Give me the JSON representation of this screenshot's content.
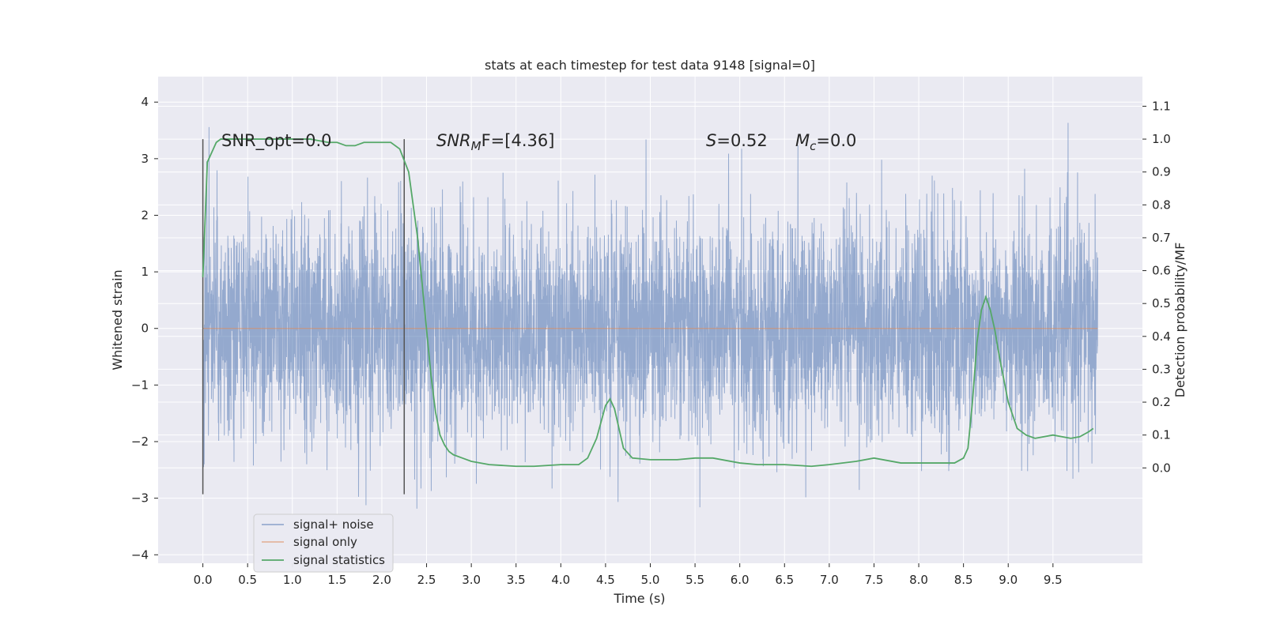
{
  "chart_data": {
    "type": "line",
    "title": "stats at each timestep for test data 9148 [signal=0]",
    "xlabel": "Time (s)",
    "ylabel": "Whitened strain",
    "ylabel_right": "Detection probability/MF",
    "xlim": [
      -0.5,
      10.5
    ],
    "ylim": [
      -4.15,
      4.45
    ],
    "ylim_right": [
      -0.29,
      1.19
    ],
    "x_ticks": [
      "0.0",
      "0.5",
      "1.0",
      "1.5",
      "2.0",
      "2.5",
      "3.0",
      "3.5",
      "4.0",
      "4.5",
      "5.0",
      "5.5",
      "6.0",
      "6.5",
      "7.0",
      "7.5",
      "8.0",
      "8.5",
      "9.0",
      "9.5"
    ],
    "y_ticks": [
      "−4",
      "−3",
      "−2",
      "−1",
      "0",
      "1",
      "2",
      "3",
      "4"
    ],
    "y_ticks_right": [
      "0.0",
      "0.1",
      "0.2",
      "0.3",
      "0.4",
      "0.5",
      "0.6",
      "0.7",
      "0.8",
      "0.9",
      "1.0",
      "1.1"
    ],
    "grid": true,
    "legend_position": "lower-left",
    "colors": {
      "background": "#eaeaf2",
      "grid": "#ffffff",
      "noise": "#4c72b0",
      "signal": "#dd8452",
      "statistics": "#55a868",
      "marker": "#555555"
    },
    "annotations": {
      "snr_opt": "SNR_opt=0.0",
      "snr_mf_prefix": "SNR",
      "snr_mf_sub": "M",
      "snr_mf_suffix": "F=[4.36]",
      "s_var": "S",
      "s_val": "=0.52",
      "mc_var": "M",
      "mc_sub": "c",
      "mc_val": "=0.0"
    },
    "markers_x": [
      0.0,
      2.25
    ],
    "series": [
      {
        "name": "signal+ noise",
        "type": "noise",
        "x_range": [
          0.0,
          10.0
        ],
        "envelope_approx": [
          -3.7,
          4.05
        ]
      },
      {
        "name": "signal only",
        "x": [
          0.0,
          10.0
        ],
        "y": [
          0.0,
          0.0
        ]
      },
      {
        "name": "signal statistics",
        "axis": "right",
        "x": [
          0.0,
          0.05,
          0.1,
          0.15,
          0.2,
          0.3,
          0.5,
          0.8,
          1.0,
          1.2,
          1.4,
          1.5,
          1.6,
          1.7,
          1.8,
          1.9,
          2.0,
          2.1,
          2.2,
          2.3,
          2.4,
          2.5,
          2.55,
          2.6,
          2.65,
          2.7,
          2.75,
          2.8,
          2.9,
          3.0,
          3.2,
          3.5,
          3.7,
          4.0,
          4.2,
          4.3,
          4.4,
          4.5,
          4.55,
          4.6,
          4.65,
          4.7,
          4.8,
          5.0,
          5.3,
          5.5,
          5.7,
          6.0,
          6.2,
          6.5,
          6.8,
          7.0,
          7.3,
          7.5,
          7.8,
          8.0,
          8.2,
          8.4,
          8.5,
          8.55,
          8.6,
          8.65,
          8.7,
          8.75,
          8.8,
          8.85,
          8.9,
          9.0,
          9.1,
          9.2,
          9.3,
          9.5,
          9.7,
          9.8,
          9.9,
          9.95
        ],
        "y": [
          0.58,
          0.93,
          0.96,
          0.99,
          1.0,
          1.0,
          1.0,
          1.0,
          1.0,
          1.0,
          0.99,
          0.99,
          0.98,
          0.98,
          0.99,
          0.99,
          0.99,
          0.99,
          0.97,
          0.9,
          0.7,
          0.42,
          0.28,
          0.17,
          0.1,
          0.07,
          0.05,
          0.04,
          0.03,
          0.02,
          0.01,
          0.005,
          0.005,
          0.01,
          0.01,
          0.03,
          0.09,
          0.19,
          0.21,
          0.18,
          0.12,
          0.06,
          0.03,
          0.025,
          0.025,
          0.03,
          0.03,
          0.015,
          0.01,
          0.01,
          0.005,
          0.01,
          0.02,
          0.03,
          0.015,
          0.015,
          0.015,
          0.015,
          0.03,
          0.06,
          0.2,
          0.38,
          0.48,
          0.52,
          0.48,
          0.42,
          0.34,
          0.2,
          0.12,
          0.1,
          0.09,
          0.1,
          0.09,
          0.095,
          0.11,
          0.12
        ]
      }
    ]
  }
}
